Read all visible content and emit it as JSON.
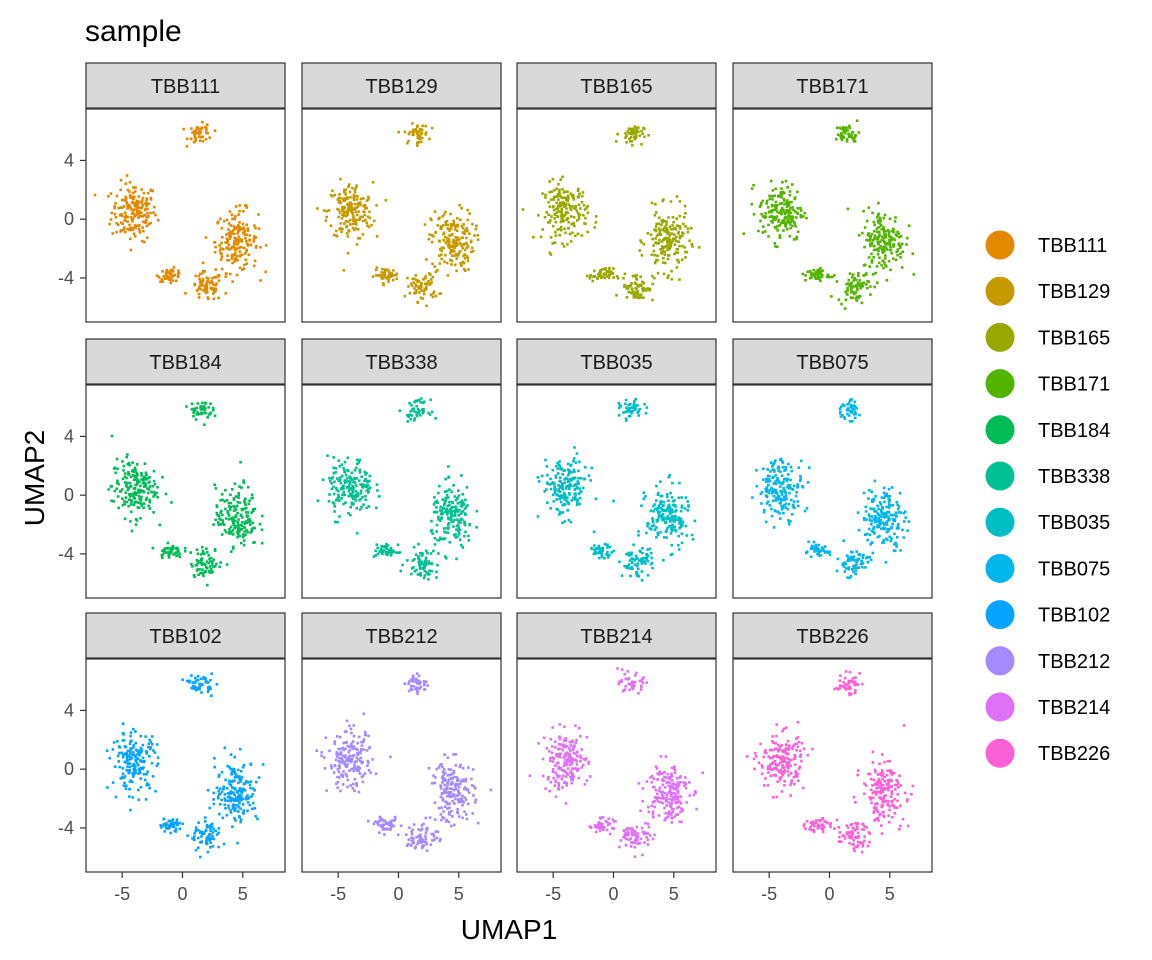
{
  "chart_data": {
    "type": "scatter",
    "title": "sample",
    "xlabel": "UMAP1",
    "ylabel": "UMAP2",
    "xlim": [
      -8,
      8.5
    ],
    "ylim": [
      -7,
      7.5
    ],
    "x_ticks": [
      -5,
      0,
      5
    ],
    "x_tick_labels": [
      "-5",
      "0",
      "5"
    ],
    "y_ticks": [
      4,
      0,
      -4
    ],
    "y_tick_labels": [
      "4",
      "0",
      "-4"
    ],
    "grid": false,
    "legend_placement": "right",
    "facets": [
      {
        "name": "TBB111",
        "color": "#E38900"
      },
      {
        "name": "TBB129",
        "color": "#C49A00"
      },
      {
        "name": "TBB165",
        "color": "#99A800"
      },
      {
        "name": "TBB171",
        "color": "#53B400"
      },
      {
        "name": "TBB184",
        "color": "#00BC56"
      },
      {
        "name": "TBB338",
        "color": "#00C094"
      },
      {
        "name": "TBB035",
        "color": "#00BFC4"
      },
      {
        "name": "TBB075",
        "color": "#00B6EB"
      },
      {
        "name": "TBB102",
        "color": "#06A4FF"
      },
      {
        "name": "TBB212",
        "color": "#A58AFF"
      },
      {
        "name": "TBB214",
        "color": "#DF70F8"
      },
      {
        "name": "TBB226",
        "color": "#FB61D7"
      }
    ],
    "legend": [
      {
        "label": "TBB111",
        "color": "#E38900"
      },
      {
        "label": "TBB129",
        "color": "#C49A00"
      },
      {
        "label": "TBB165",
        "color": "#99A800"
      },
      {
        "label": "TBB171",
        "color": "#53B400"
      },
      {
        "label": "TBB184",
        "color": "#00BC56"
      },
      {
        "label": "TBB338",
        "color": "#00C094"
      },
      {
        "label": "TBB035",
        "color": "#00BFC4"
      },
      {
        "label": "TBB075",
        "color": "#00B6EB"
      },
      {
        "label": "TBB102",
        "color": "#06A4FF"
      },
      {
        "label": "TBB212",
        "color": "#A58AFF"
      },
      {
        "label": "TBB214",
        "color": "#DF70F8"
      },
      {
        "label": "TBB226",
        "color": "#FB61D7"
      }
    ],
    "clusters": [
      {
        "name": "left-mass",
        "x": -4.0,
        "y": 0.5,
        "sx": 1.7,
        "sy": 1.8
      },
      {
        "name": "right-mass",
        "x": 4.5,
        "y": -1.5,
        "sx": 1.6,
        "sy": 1.9
      },
      {
        "name": "bottom-tail",
        "x": 2.0,
        "y": -4.6,
        "sx": 1.2,
        "sy": 0.9
      },
      {
        "name": "top-island",
        "x": 1.5,
        "y": 5.8,
        "sx": 0.9,
        "sy": 0.6
      },
      {
        "name": "bridge",
        "x": -1.0,
        "y": -3.8,
        "sx": 0.9,
        "sy": 0.4
      }
    ]
  }
}
